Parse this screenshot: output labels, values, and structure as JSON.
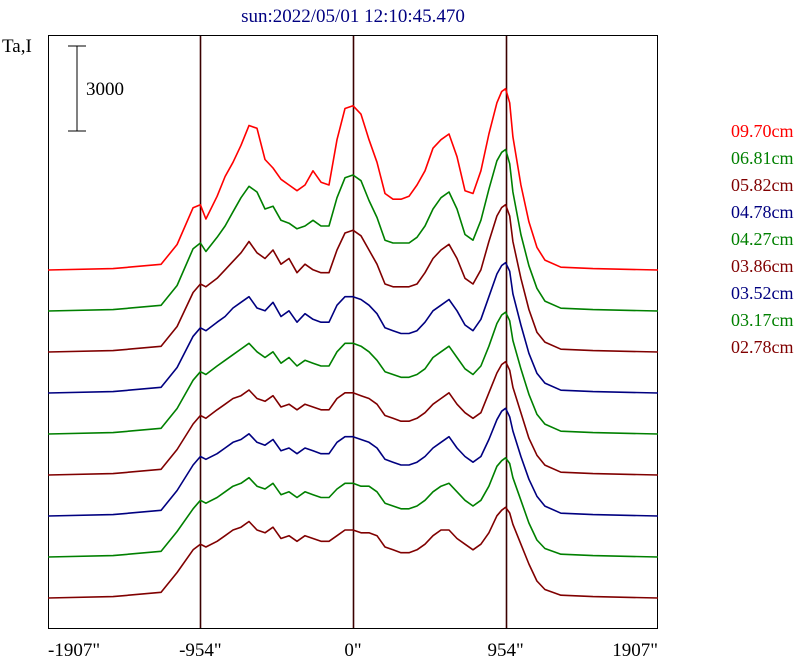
{
  "chart_data": {
    "type": "line",
    "title": "sun:2022/05/01 12:10:45.470",
    "ylabel": "Ta,I",
    "scale_bar_label": "3000",
    "scale_bar_value": 3000,
    "x_ticks": [
      "-1907\"",
      "-954\"",
      "0\"",
      "954\"",
      "1907\""
    ],
    "xlim": [
      -1907,
      1907
    ],
    "vertical_lines": [
      -954,
      0,
      954
    ],
    "x": [
      -1907,
      -1500,
      -1200,
      -1100,
      -1000,
      -954,
      -920,
      -850,
      -800,
      -750,
      -700,
      -650,
      -600,
      -550,
      -500,
      -450,
      -400,
      -350,
      -300,
      -250,
      -200,
      -150,
      -100,
      -50,
      0,
      50,
      100,
      150,
      200,
      250,
      300,
      350,
      400,
      450,
      500,
      550,
      600,
      650,
      700,
      750,
      800,
      850,
      900,
      930,
      954,
      980,
      1000,
      1050,
      1100,
      1150,
      1200,
      1300,
      1500,
      1907
    ],
    "series": [
      {
        "name": "09.70cm",
        "color": "#ff0000",
        "values": [
          0,
          50,
          200,
          900,
          2200,
          2300,
          1800,
          2600,
          3300,
          3800,
          4400,
          5100,
          5000,
          3900,
          3600,
          3200,
          3000,
          2800,
          3000,
          3500,
          3100,
          3000,
          4600,
          5700,
          5800,
          5500,
          4600,
          3800,
          2700,
          2500,
          2500,
          2600,
          3000,
          3500,
          4300,
          4600,
          4800,
          4000,
          2800,
          2700,
          3500,
          4800,
          5900,
          6300,
          6400,
          5900,
          4700,
          3000,
          1700,
          800,
          350,
          100,
          50,
          0
        ]
      },
      {
        "name": "06.81cm",
        "color": "#008000",
        "values": [
          0,
          50,
          200,
          900,
          2200,
          2400,
          2100,
          2600,
          3000,
          3500,
          4000,
          4400,
          4200,
          3600,
          3700,
          3200,
          3100,
          2900,
          3000,
          3200,
          3000,
          3000,
          4000,
          4700,
          4800,
          4600,
          3900,
          3300,
          2500,
          2400,
          2400,
          2400,
          2600,
          3000,
          3600,
          4000,
          4200,
          3600,
          2700,
          2500,
          3200,
          4300,
          5300,
          5600,
          5700,
          5200,
          4200,
          2700,
          1600,
          800,
          350,
          100,
          50,
          0
        ]
      },
      {
        "name": "05.82cm",
        "color": "#800000",
        "values": [
          0,
          50,
          200,
          900,
          2100,
          2400,
          2300,
          2600,
          2900,
          3200,
          3500,
          3900,
          3500,
          3300,
          3600,
          3100,
          3300,
          2800,
          3100,
          2900,
          2800,
          2800,
          3600,
          4200,
          4300,
          4100,
          3600,
          3100,
          2400,
          2300,
          2300,
          2300,
          2400,
          2800,
          3300,
          3600,
          3800,
          3300,
          2600,
          2400,
          2900,
          3900,
          4800,
          5100,
          5200,
          4800,
          3900,
          2600,
          1500,
          700,
          350,
          100,
          50,
          0
        ]
      },
      {
        "name": "04.78cm",
        "color": "#000080",
        "values": [
          0,
          50,
          200,
          900,
          2000,
          2300,
          2200,
          2500,
          2700,
          3000,
          3200,
          3400,
          3000,
          2900,
          3200,
          2700,
          2900,
          2500,
          2800,
          2600,
          2500,
          2500,
          3100,
          3400,
          3400,
          3300,
          3100,
          2800,
          2300,
          2200,
          2100,
          2100,
          2200,
          2500,
          2900,
          3100,
          3300,
          2900,
          2400,
          2200,
          2600,
          3400,
          4200,
          4500,
          4600,
          4300,
          3500,
          2400,
          1400,
          700,
          350,
          100,
          50,
          0
        ]
      },
      {
        "name": "04.27cm",
        "color": "#008000",
        "values": [
          0,
          50,
          200,
          900,
          1900,
          2200,
          2100,
          2400,
          2600,
          2800,
          3000,
          3200,
          2900,
          2700,
          2900,
          2500,
          2700,
          2400,
          2600,
          2500,
          2400,
          2400,
          2900,
          3200,
          3200,
          3100,
          2900,
          2600,
          2200,
          2100,
          2000,
          2000,
          2100,
          2300,
          2700,
          2900,
          3100,
          2700,
          2300,
          2100,
          2400,
          3100,
          3900,
          4200,
          4300,
          4000,
          3300,
          2300,
          1400,
          700,
          350,
          100,
          50,
          0
        ]
      },
      {
        "name": "03.86cm",
        "color": "#800000",
        "values": [
          0,
          50,
          200,
          900,
          1800,
          2100,
          2000,
          2300,
          2500,
          2700,
          2800,
          3000,
          2700,
          2600,
          2800,
          2400,
          2500,
          2300,
          2500,
          2400,
          2300,
          2300,
          2700,
          2900,
          2900,
          2800,
          2700,
          2500,
          2100,
          2000,
          1900,
          1900,
          2000,
          2200,
          2500,
          2700,
          2900,
          2500,
          2200,
          2000,
          2200,
          2900,
          3600,
          3900,
          4000,
          3700,
          3100,
          2200,
          1300,
          700,
          350,
          100,
          50,
          0
        ]
      },
      {
        "name": "03.52cm",
        "color": "#000080",
        "values": [
          0,
          50,
          200,
          900,
          1800,
          2100,
          2000,
          2200,
          2400,
          2600,
          2700,
          2900,
          2600,
          2500,
          2700,
          2300,
          2400,
          2200,
          2400,
          2300,
          2200,
          2200,
          2600,
          2800,
          2800,
          2700,
          2600,
          2400,
          2000,
          1900,
          1800,
          1800,
          1900,
          2100,
          2400,
          2600,
          2800,
          2400,
          2100,
          1900,
          2100,
          2700,
          3400,
          3700,
          3800,
          3500,
          3000,
          2100,
          1300,
          700,
          350,
          100,
          50,
          0
        ]
      },
      {
        "name": "03.17cm",
        "color": "#008000",
        "values": [
          0,
          50,
          200,
          900,
          1700,
          2000,
          1900,
          2100,
          2300,
          2500,
          2600,
          2800,
          2500,
          2400,
          2600,
          2200,
          2300,
          2100,
          2300,
          2200,
          2100,
          2100,
          2400,
          2600,
          2600,
          2500,
          2500,
          2300,
          1900,
          1800,
          1700,
          1700,
          1800,
          2000,
          2300,
          2500,
          2600,
          2300,
          2000,
          1800,
          2000,
          2500,
          3200,
          3400,
          3500,
          3300,
          2800,
          2000,
          1200,
          600,
          300,
          100,
          50,
          0
        ]
      },
      {
        "name": "02.78cm",
        "color": "#800000",
        "values": [
          0,
          50,
          200,
          900,
          1700,
          1900,
          1800,
          2000,
          2200,
          2400,
          2500,
          2700,
          2400,
          2300,
          2500,
          2100,
          2200,
          2000,
          2200,
          2100,
          2000,
          2000,
          2200,
          2400,
          2400,
          2300,
          2300,
          2200,
          1800,
          1700,
          1600,
          1600,
          1700,
          1900,
          2200,
          2400,
          2400,
          2100,
          1900,
          1700,
          1900,
          2300,
          2900,
          3100,
          3200,
          3000,
          2600,
          1900,
          1200,
          600,
          300,
          100,
          50,
          0
        ]
      }
    ]
  }
}
